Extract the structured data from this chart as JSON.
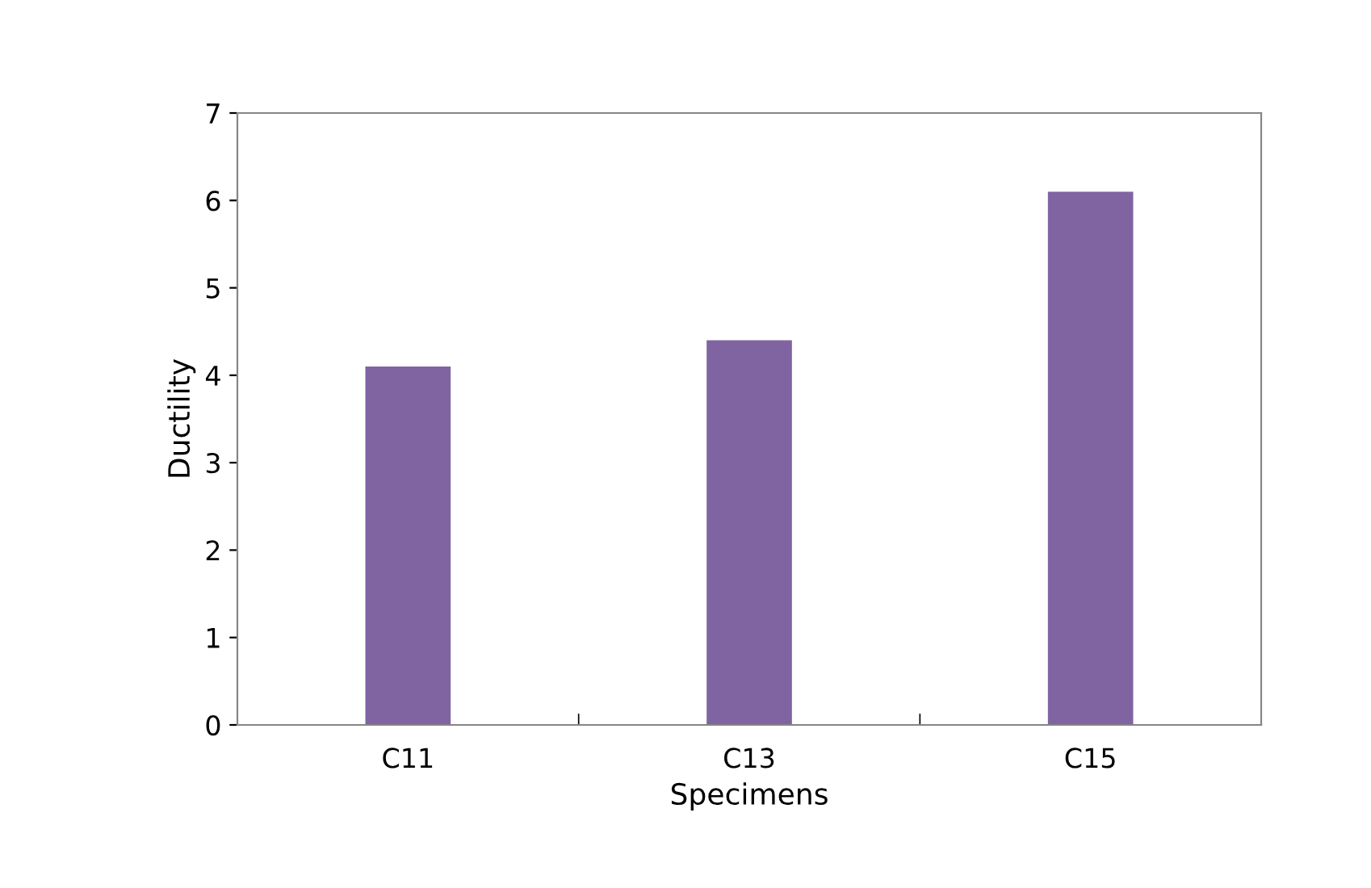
{
  "chart_data": {
    "type": "bar",
    "xlabel": "Specimens",
    "ylabel": "Ductility",
    "categories": [
      "C11",
      "C13",
      "C15"
    ],
    "values": [
      4.1,
      4.4,
      6.1
    ],
    "color": "#8064a2",
    "ylim": [
      0,
      7
    ],
    "yticks": [
      0,
      1,
      2,
      3,
      4,
      5,
      6,
      7
    ],
    "grid": false,
    "legend": false
  }
}
